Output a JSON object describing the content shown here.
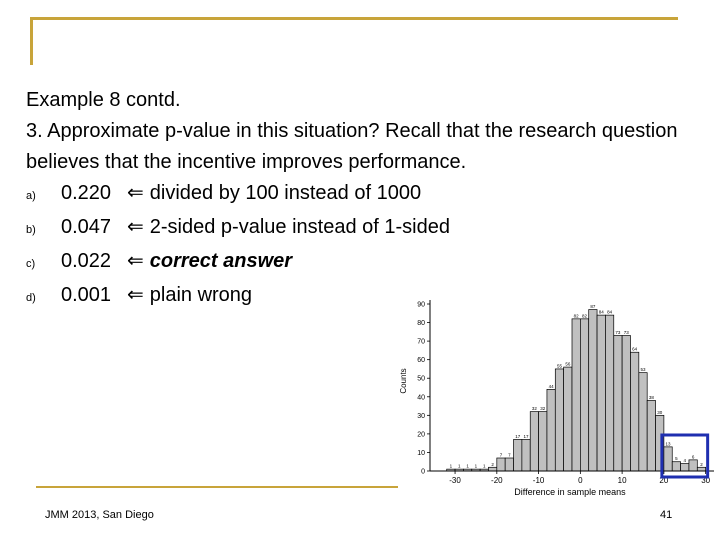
{
  "slide": {
    "title": "Example 8 contd.",
    "question": "3. Approximate p-value in this situation? Recall that the research question believes that the incentive improves performance.",
    "options": [
      {
        "letter": "a)",
        "value": "0.220",
        "note": "divided by 100 instead of 1000",
        "emphasis": false
      },
      {
        "letter": "b)",
        "value": "0.047",
        "note": "2-sided p-value instead of 1-sided",
        "emphasis": false
      },
      {
        "letter": "c)",
        "value": "0.022",
        "note": "correct answer",
        "emphasis": true
      },
      {
        "letter": "d)",
        "value": "0.001",
        "note": "plain wrong",
        "emphasis": false
      }
    ],
    "arrow_glyph": "⇐",
    "footer_left": "JMM 2013, San Diego",
    "page_number": "41"
  },
  "colors": {
    "accent": "#c8a43a",
    "bars": "#c0c0c0",
    "highlight_box": "#1f2fb0"
  },
  "chart_data": {
    "type": "bar",
    "xlabel": "Difference in sample means",
    "ylabel": "Counts",
    "ylim": [
      0,
      90
    ],
    "yticks": [
      0,
      10,
      20,
      30,
      40,
      50,
      60,
      70,
      80,
      90
    ],
    "xtick_labels": [
      "-30",
      "-20",
      "-10",
      "0",
      "10",
      "20",
      "30"
    ],
    "xtick_values": [
      -30,
      -20,
      -10,
      0,
      10,
      20,
      30
    ],
    "bin_starts": [
      -32,
      -30,
      -28,
      -26,
      -24,
      -22,
      -20,
      -18,
      -16,
      -14,
      -12,
      -10,
      -8,
      -6,
      -4,
      -2,
      0,
      2,
      4,
      6,
      8,
      10,
      12,
      14,
      16,
      18,
      20,
      22,
      24,
      26,
      28
    ],
    "values": [
      1,
      1,
      1,
      1,
      1,
      2,
      7,
      7,
      17,
      17,
      32,
      32,
      44,
      55,
      56,
      82,
      82,
      87,
      84,
      84,
      73,
      73,
      64,
      53,
      38,
      30,
      13,
      5,
      4,
      6,
      2
    ],
    "bar_labels": [
      "1",
      "1",
      "1",
      "1",
      "1",
      "2",
      "7",
      "7",
      "17",
      "17",
      "32",
      "32",
      "44",
      "55",
      "56",
      "82",
      "82",
      "87",
      "84",
      "84",
      "73",
      "73",
      "64",
      "53",
      "38",
      "30",
      "13",
      "5",
      "4",
      "6",
      "2"
    ],
    "highlight_range": [
      20,
      30
    ]
  }
}
